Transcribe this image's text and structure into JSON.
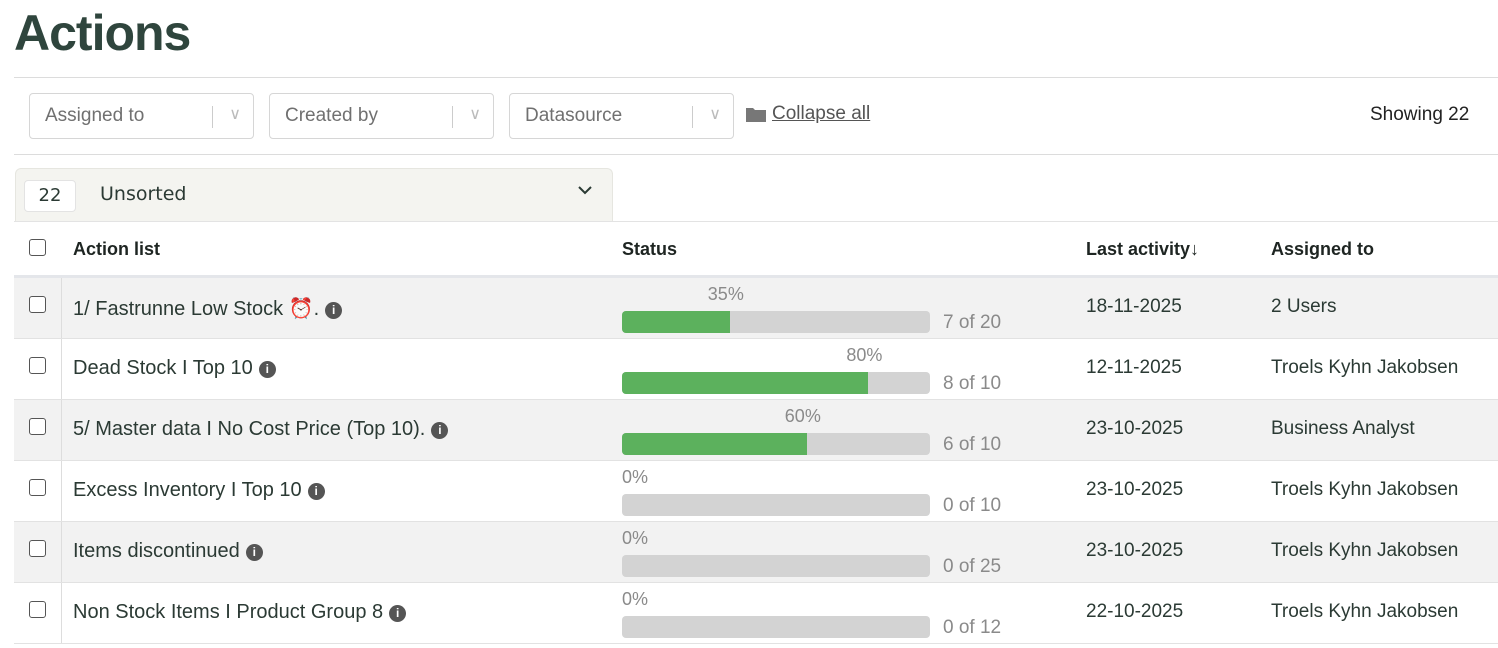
{
  "page": {
    "title": "Actions"
  },
  "filters": [
    {
      "label": "Assigned to"
    },
    {
      "label": "Created by"
    },
    {
      "label": "Datasource"
    }
  ],
  "collapse_all": "Collapse all",
  "showing": "Showing 22",
  "sort": {
    "count": "22",
    "label": "Unsorted"
  },
  "columns": {
    "action_list": "Action list",
    "status": "Status",
    "last_activity": "Last activity",
    "sort_arrow": "↓",
    "assigned_to": "Assigned to"
  },
  "colors": {
    "progress": "#5cb15d",
    "track": "#d3d3d3",
    "title": "#2f453d"
  },
  "rows": [
    {
      "name": "1/ Fastrunne Low Stock ⏰.",
      "percent": 35,
      "percent_label": "35%",
      "progress": "7 of 20",
      "date": "18-11-2025",
      "assigned": "2 Users"
    },
    {
      "name": "Dead Stock I Top 10",
      "percent": 80,
      "percent_label": "80%",
      "progress": "8 of 10",
      "date": "12-11-2025",
      "assigned": "Troels Kyhn Jakobsen"
    },
    {
      "name": "5/ Master data I No Cost Price (Top 10).",
      "percent": 60,
      "percent_label": "60%",
      "progress": "6 of 10",
      "date": "23-10-2025",
      "assigned": "Business Analyst"
    },
    {
      "name": "Excess Inventory I Top 10",
      "percent": 0,
      "percent_label": "0%",
      "progress": "0 of 10",
      "date": "23-10-2025",
      "assigned": "Troels Kyhn Jakobsen"
    },
    {
      "name": "Items discontinued",
      "percent": 0,
      "percent_label": "0%",
      "progress": "0 of 25",
      "date": "23-10-2025",
      "assigned": "Troels Kyhn Jakobsen"
    },
    {
      "name": "Non Stock Items I Product Group 8",
      "percent": 0,
      "percent_label": "0%",
      "progress": "0 of 12",
      "date": "22-10-2025",
      "assigned": "Troels Kyhn Jakobsen"
    }
  ]
}
